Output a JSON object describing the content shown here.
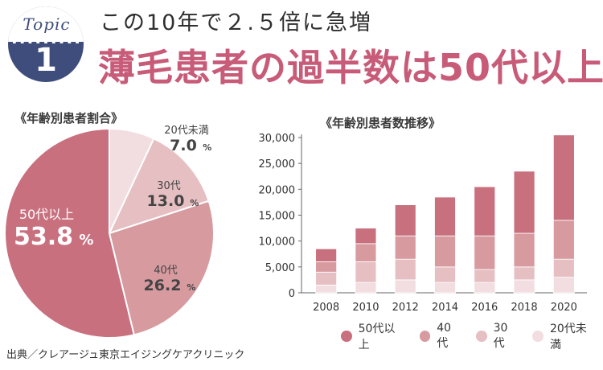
{
  "header": {
    "badge_word": "Topic",
    "badge_number": "1",
    "subtitle": "この10年で２.５倍に急増",
    "title": "薄毛患者の過半数は50代以上"
  },
  "pie_section_label": "《年齢別患者割合》",
  "bar_section_label": "《年齢別患者数推移》",
  "source": "出典／クレアージュ東京エイジングケアクリニック",
  "colors": {
    "accent": "#c75b78",
    "badge": "#3f4d7d",
    "s50": "#c9707f",
    "s40": "#d69a9f",
    "s30": "#e6bfc2",
    "s20": "#f2dde0"
  },
  "chart_data": [
    {
      "type": "pie",
      "title": "《年齢別患者割合》",
      "slices": [
        {
          "label": "50代以上",
          "value": 53.8,
          "display": "53.8",
          "unit": "%",
          "color": "#c9707f"
        },
        {
          "label": "40代",
          "value": 26.2,
          "display": "26.2",
          "unit": "%",
          "color": "#d69a9f"
        },
        {
          "label": "30代",
          "value": 13.0,
          "display": "13.0",
          "unit": "%",
          "color": "#e6bfc2"
        },
        {
          "label": "20代未満",
          "value": 7.0,
          "display": "7.0",
          "unit": "%",
          "color": "#f2dde0"
        }
      ]
    },
    {
      "type": "bar",
      "stacked": true,
      "title": "《年齢別患者数推移》",
      "categories": [
        "2008",
        "2010",
        "2012",
        "2014",
        "2016",
        "2018",
        "2020"
      ],
      "series": [
        {
          "name": "20代未満",
          "color": "#f2dde0",
          "values": [
            1500,
            2000,
            2500,
            2000,
            2000,
            2500,
            3000
          ]
        },
        {
          "name": "30代",
          "color": "#e6bfc2",
          "values": [
            2500,
            4000,
            4000,
            3000,
            2500,
            2500,
            3500
          ]
        },
        {
          "name": "40代",
          "color": "#d69a9f",
          "values": [
            2000,
            3500,
            4500,
            6000,
            6500,
            6500,
            7500
          ]
        },
        {
          "name": "50代以上",
          "color": "#c9707f",
          "values": [
            2500,
            3000,
            6000,
            7500,
            9500,
            12000,
            16500
          ]
        }
      ],
      "ylim": [
        0,
        30000
      ],
      "yticks": [
        "0",
        "5,000",
        "10,000",
        "15,000",
        "20,000",
        "25,000",
        "30,000"
      ],
      "ytick_values": [
        0,
        5000,
        10000,
        15000,
        20000,
        25000,
        30000
      ],
      "legend": [
        {
          "label": "50代以上",
          "color": "#c9707f"
        },
        {
          "label": "40代",
          "color": "#d69a9f"
        },
        {
          "label": "30代",
          "color": "#e6bfc2"
        },
        {
          "label": "20代未満",
          "color": "#f2dde0"
        }
      ],
      "legend_position": "bottom"
    }
  ]
}
